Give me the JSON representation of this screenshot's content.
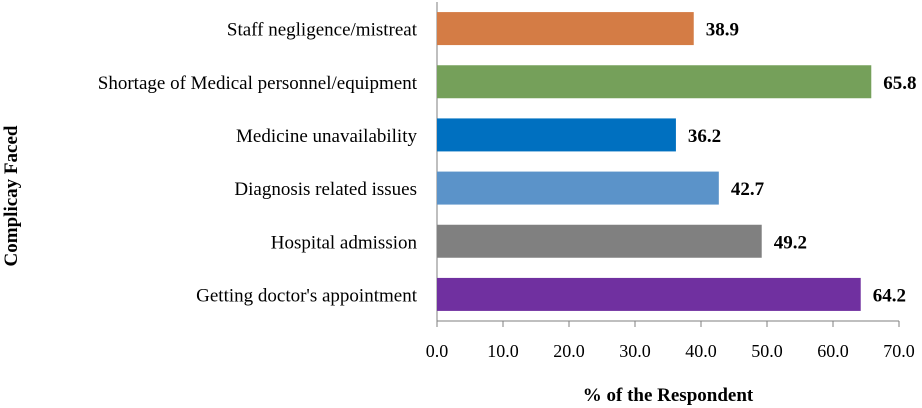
{
  "chart_data": {
    "type": "bar",
    "orientation": "horizontal",
    "categories": [
      "Staff negligence/mistreat",
      "Shortage of Medical personnel/equipment",
      "Medicine unavailability",
      "Diagnosis related issues",
      "Hospital admission",
      "Getting doctor's appointment"
    ],
    "values": [
      38.9,
      65.8,
      36.2,
      42.7,
      49.2,
      64.2
    ],
    "value_labels": [
      "38.9",
      "65.8",
      "36.2",
      "42.7",
      "49.2",
      "64.2"
    ],
    "bar_colors": [
      "#d47c45",
      "#75a05a",
      "#0070c0",
      "#5b93c9",
      "#808080",
      "#7030a0"
    ],
    "xlabel": "% of the Respondent",
    "ylabel": "Complicay Faced",
    "xlim": [
      0,
      70
    ],
    "xticks": [
      "0.0",
      "10.0",
      "20.0",
      "30.0",
      "40.0",
      "50.0",
      "60.0",
      "70.0"
    ],
    "grid": false,
    "legend": "none"
  }
}
